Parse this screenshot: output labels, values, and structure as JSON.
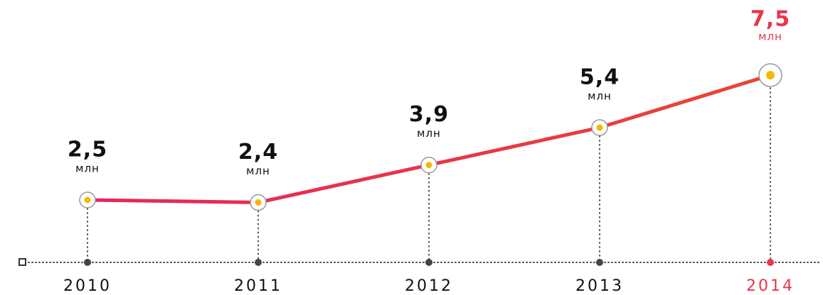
{
  "chart_data": {
    "type": "line",
    "categories": [
      "2010",
      "2011",
      "2012",
      "2013",
      "2014"
    ],
    "values": [
      2.5,
      2.4,
      3.9,
      5.4,
      7.5
    ],
    "value_labels": [
      "2,5",
      "2,4",
      "3,9",
      "5,4",
      "7,5"
    ],
    "unit": "млн",
    "color": "#e8245f",
    "highlight_color": "#e8354a",
    "marker_color": "#f5b800"
  }
}
